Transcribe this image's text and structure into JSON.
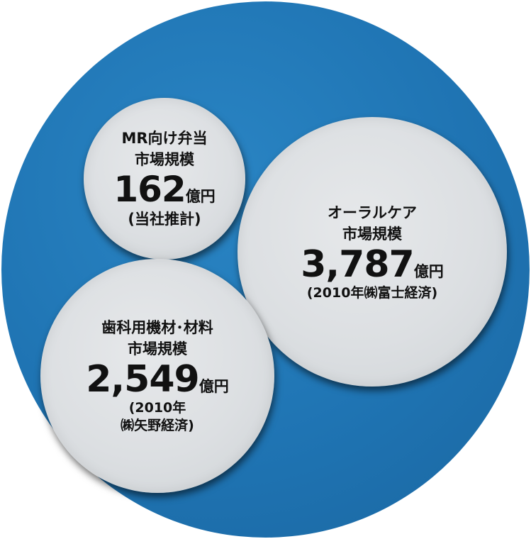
{
  "outer": {
    "color": "#1f74b3"
  },
  "bubbles": {
    "mr_bento": {
      "title": "MR向け弁当",
      "subtitle": "市場規模",
      "value": "162",
      "unit": "億円",
      "note_line1": "(当社推計)",
      "note_line2": ""
    },
    "oral_care": {
      "title": "オーラルケア",
      "subtitle": "市場規模",
      "value": "3,787",
      "unit": "億円",
      "note_line1": "(2010年㈱富士経済)",
      "note_line2": ""
    },
    "dental": {
      "title": "歯科用機材･材料",
      "subtitle": "市場規模",
      "value": "2,549",
      "unit": "億円",
      "note_line1": "(2010年",
      "note_line2": "㈱矢野経済)"
    }
  }
}
